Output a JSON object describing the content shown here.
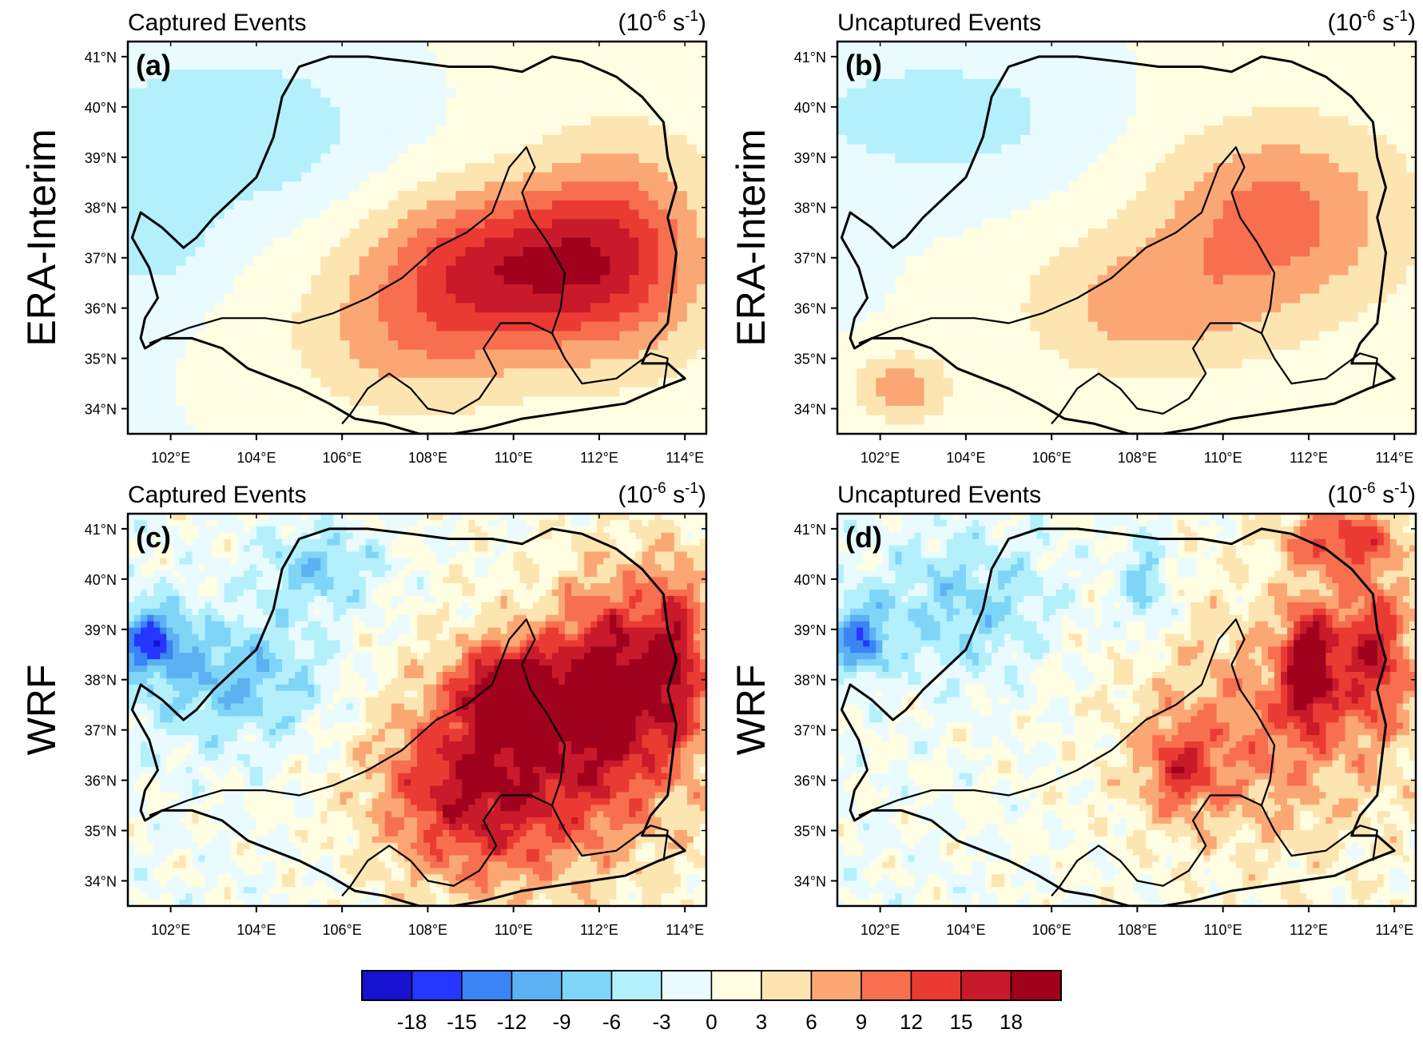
{
  "unit": {
    "base": "(10",
    "exponent": "-6",
    "mid": " s",
    "exponent2": "-1",
    "close": ")"
  },
  "rows": [
    {
      "label": "ERA-Interim"
    },
    {
      "label": "WRF"
    }
  ],
  "panels": [
    {
      "id": "a",
      "letter": "(a)",
      "title": "Captured Events",
      "dataset": "ERA-Interim",
      "pattern": "era",
      "hotspots": [
        {
          "lon": 109.8,
          "lat": 36.8,
          "peak": 15.5,
          "sx": 2.2,
          "sy": 1.1
        },
        {
          "lon": 112.5,
          "lat": 37.2,
          "peak": 9.0,
          "sx": 1.4,
          "sy": 1.5
        },
        {
          "lon": 107.5,
          "lat": 35.2,
          "peak": 5.5,
          "sx": 2.0,
          "sy": 1.0
        }
      ],
      "coldspots": [
        {
          "lon": 103.5,
          "lat": 39.5,
          "peak": -5.5,
          "sx": 2.5,
          "sy": 1.2
        },
        {
          "lon": 101.5,
          "lat": 37.5,
          "peak": -4.5,
          "sx": 1.0,
          "sy": 0.9
        }
      ]
    },
    {
      "id": "b",
      "letter": "(b)",
      "title": "Uncaptured Events",
      "dataset": "ERA-Interim",
      "pattern": "era",
      "hotspots": [
        {
          "lon": 111.2,
          "lat": 37.8,
          "peak": 9.5,
          "sx": 2.0,
          "sy": 1.3
        },
        {
          "lon": 108.0,
          "lat": 36.0,
          "peak": 6.5,
          "sx": 2.0,
          "sy": 1.0
        },
        {
          "lon": 102.5,
          "lat": 34.4,
          "peak": 8.0,
          "sx": 0.8,
          "sy": 0.5
        }
      ],
      "coldspots": [
        {
          "lon": 103.5,
          "lat": 39.8,
          "peak": -4.5,
          "sx": 2.6,
          "sy": 1.0
        }
      ]
    },
    {
      "id": "c",
      "letter": "(c)",
      "title": "Captured Events",
      "dataset": "WRF",
      "pattern": "wrf",
      "hotspots": [
        {
          "lon": 110.0,
          "lat": 37.8,
          "peak": 17.0,
          "sx": 0.8,
          "sy": 0.6
        },
        {
          "lon": 112.3,
          "lat": 38.0,
          "peak": 15.5,
          "sx": 0.9,
          "sy": 1.4
        },
        {
          "lon": 109.0,
          "lat": 35.8,
          "peak": 12.5,
          "sx": 1.6,
          "sy": 1.3
        },
        {
          "lon": 113.8,
          "lat": 38.5,
          "peak": 13.0,
          "sx": 0.5,
          "sy": 1.3
        },
        {
          "lon": 111.0,
          "lat": 36.5,
          "peak": 9.0,
          "sx": 2.3,
          "sy": 1.8
        }
      ],
      "coldspots": [
        {
          "lon": 101.5,
          "lat": 38.8,
          "peak": -13.5,
          "sx": 0.6,
          "sy": 0.5
        },
        {
          "lon": 103.5,
          "lat": 38.0,
          "peak": -8.5,
          "sx": 1.6,
          "sy": 0.9
        },
        {
          "lon": 105.5,
          "lat": 40.2,
          "peak": -7.5,
          "sx": 1.0,
          "sy": 0.6
        }
      ]
    },
    {
      "id": "d",
      "letter": "(d)",
      "title": "Uncaptured Events",
      "dataset": "WRF",
      "pattern": "wrf",
      "hotspots": [
        {
          "lon": 112.0,
          "lat": 38.3,
          "peak": 19.0,
          "sx": 0.4,
          "sy": 0.8
        },
        {
          "lon": 113.5,
          "lat": 38.6,
          "peak": 13.5,
          "sx": 0.6,
          "sy": 1.0
        },
        {
          "lon": 111.0,
          "lat": 37.0,
          "peak": 8.5,
          "sx": 2.2,
          "sy": 1.7
        },
        {
          "lon": 112.8,
          "lat": 40.8,
          "peak": 12.0,
          "sx": 1.0,
          "sy": 0.5
        },
        {
          "lon": 109.0,
          "lat": 36.2,
          "peak": 10.0,
          "sx": 0.6,
          "sy": 0.6
        }
      ],
      "coldspots": [
        {
          "lon": 101.5,
          "lat": 38.8,
          "peak": -12.0,
          "sx": 0.5,
          "sy": 0.5
        },
        {
          "lon": 104.0,
          "lat": 39.5,
          "peak": -7.0,
          "sx": 1.5,
          "sy": 1.0
        },
        {
          "lon": 108.2,
          "lat": 39.9,
          "peak": -8.0,
          "sx": 0.4,
          "sy": 0.7
        }
      ]
    }
  ],
  "map": {
    "lon_range": [
      101,
      114.5
    ],
    "lat_range": [
      33.5,
      41.3
    ],
    "lon_ticks": [
      "102°E",
      "104°E",
      "106°E",
      "108°E",
      "110°E",
      "112°E",
      "114°E"
    ],
    "lon_tick_values": [
      102,
      104,
      106,
      108,
      110,
      112,
      114
    ],
    "lat_ticks": [
      "41°N",
      "40°N",
      "39°N",
      "38°N",
      "37°N",
      "36°N",
      "35°N",
      "34°N"
    ],
    "lat_tick_values": [
      41,
      40,
      39,
      38,
      37,
      36,
      35,
      34
    ],
    "boundary_outer": [
      [
        101.4,
        35.2
      ],
      [
        101.8,
        35.4
      ],
      [
        102.5,
        35.4
      ],
      [
        103.2,
        35.2
      ],
      [
        103.8,
        34.8
      ],
      [
        104.4,
        34.6
      ],
      [
        105.0,
        34.4
      ],
      [
        105.7,
        34.1
      ],
      [
        106.3,
        33.8
      ],
      [
        107.0,
        33.7
      ],
      [
        107.8,
        33.5
      ],
      [
        108.6,
        33.5
      ],
      [
        109.3,
        33.6
      ],
      [
        110.2,
        33.8
      ],
      [
        111.0,
        33.9
      ],
      [
        111.8,
        34.0
      ],
      [
        112.6,
        34.1
      ],
      [
        113.4,
        34.4
      ],
      [
        114.0,
        34.6
      ],
      [
        113.6,
        34.9
      ],
      [
        113.0,
        34.9
      ],
      [
        113.2,
        35.3
      ],
      [
        113.6,
        35.7
      ],
      [
        113.7,
        36.4
      ],
      [
        113.8,
        37.1
      ],
      [
        113.6,
        37.8
      ],
      [
        113.8,
        38.4
      ],
      [
        113.6,
        39.0
      ],
      [
        113.5,
        39.7
      ],
      [
        113.0,
        40.2
      ],
      [
        112.4,
        40.6
      ],
      [
        111.6,
        40.9
      ],
      [
        110.9,
        41.0
      ],
      [
        110.2,
        40.7
      ],
      [
        109.5,
        40.8
      ],
      [
        108.5,
        40.8
      ],
      [
        107.6,
        40.9
      ],
      [
        106.6,
        41.0
      ],
      [
        105.7,
        41.0
      ],
      [
        105.0,
        40.8
      ],
      [
        104.6,
        40.2
      ],
      [
        104.4,
        39.4
      ],
      [
        104.0,
        38.6
      ],
      [
        103.5,
        38.2
      ],
      [
        103.0,
        37.8
      ],
      [
        102.6,
        37.4
      ],
      [
        102.3,
        37.2
      ],
      [
        101.8,
        37.6
      ],
      [
        101.3,
        37.9
      ],
      [
        101.1,
        37.4
      ],
      [
        101.5,
        36.8
      ],
      [
        101.7,
        36.2
      ],
      [
        101.4,
        35.8
      ],
      [
        101.3,
        35.4
      ],
      [
        101.4,
        35.2
      ]
    ],
    "boundary_inner": [
      [
        101.5,
        35.3
      ],
      [
        102.4,
        35.6
      ],
      [
        103.2,
        35.8
      ],
      [
        104.2,
        35.8
      ],
      [
        105.0,
        35.7
      ],
      [
        105.8,
        35.9
      ],
      [
        106.6,
        36.2
      ],
      [
        107.4,
        36.6
      ],
      [
        108.2,
        37.2
      ],
      [
        108.9,
        37.5
      ],
      [
        109.5,
        37.9
      ],
      [
        109.9,
        38.8
      ],
      [
        110.3,
        39.2
      ],
      [
        110.5,
        38.8
      ],
      [
        110.2,
        38.3
      ],
      [
        110.4,
        37.8
      ],
      [
        110.8,
        37.3
      ],
      [
        111.2,
        36.7
      ],
      [
        111.1,
        36.0
      ],
      [
        110.9,
        35.5
      ],
      [
        111.2,
        35.0
      ],
      [
        111.6,
        34.5
      ],
      [
        112.4,
        34.6
      ],
      [
        113.2,
        35.1
      ],
      [
        113.6,
        35.0
      ],
      [
        113.5,
        34.4
      ]
    ],
    "boundary_inner2": [
      [
        110.9,
        35.5
      ],
      [
        110.4,
        35.7
      ],
      [
        109.7,
        35.7
      ],
      [
        109.3,
        35.2
      ],
      [
        109.6,
        34.7
      ],
      [
        109.2,
        34.2
      ],
      [
        108.6,
        33.9
      ],
      [
        108.0,
        34.0
      ],
      [
        107.6,
        34.4
      ],
      [
        107.1,
        34.7
      ],
      [
        106.6,
        34.4
      ],
      [
        106.2,
        33.9
      ],
      [
        106.0,
        33.7
      ]
    ]
  },
  "colorbar": {
    "labels": [
      "-18",
      "-15",
      "-12",
      "-9",
      "-6",
      "-3",
      "0",
      "3",
      "6",
      "9",
      "12",
      "15",
      "18"
    ],
    "levels": [
      -18,
      -15,
      -12,
      -9,
      -6,
      -3,
      0,
      3,
      6,
      9,
      12,
      15,
      18
    ],
    "colors": [
      "#1712cf",
      "#2536ff",
      "#3a84f6",
      "#5cb1f2",
      "#7fd5f8",
      "#b3f0fc",
      "#e9fbfe",
      "#fffde2",
      "#fde5b2",
      "#fba774",
      "#f76f4f",
      "#ea3b33",
      "#c81a2a",
      "#a0011d"
    ]
  }
}
